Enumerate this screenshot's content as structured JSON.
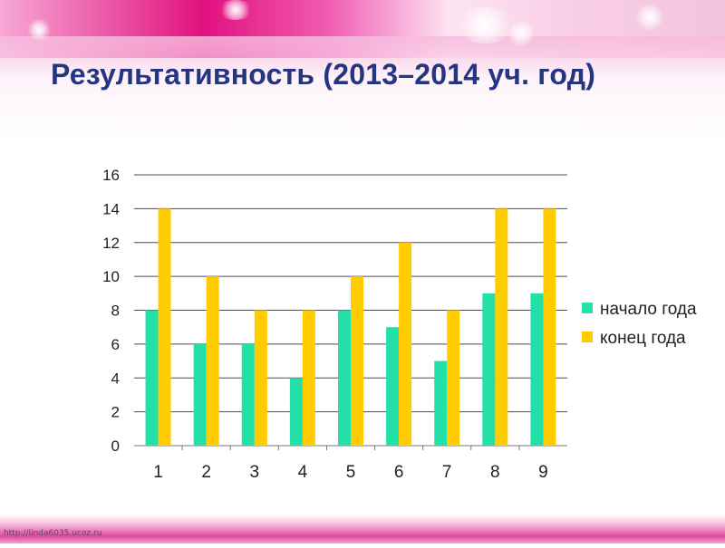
{
  "page": {
    "title": "Результативность (2013–2014 уч. год)",
    "footer_url": "http://linda6035.ucoz.ru"
  },
  "colors": {
    "title": "#243680",
    "series_start": "#22e0a8",
    "series_end": "#ffcc00",
    "gridline": "#4d4d4d"
  },
  "chart_data": {
    "type": "bar",
    "title": "",
    "xlabel": "",
    "ylabel": "",
    "categories": [
      "1",
      "2",
      "3",
      "4",
      "5",
      "6",
      "7",
      "8",
      "9"
    ],
    "series": [
      {
        "name": "начало года",
        "color": "#22e0a8",
        "values": [
          8,
          6,
          6,
          4,
          8,
          7,
          5,
          9,
          9
        ]
      },
      {
        "name": "конец года",
        "color": "#ffcc00",
        "values": [
          14,
          10,
          8,
          8,
          10,
          12,
          8,
          14,
          14
        ]
      }
    ],
    "ylim": [
      0,
      16
    ],
    "yticks": [
      0,
      2,
      4,
      6,
      8,
      10,
      12,
      14,
      16
    ],
    "grid": true,
    "legend": "right"
  }
}
